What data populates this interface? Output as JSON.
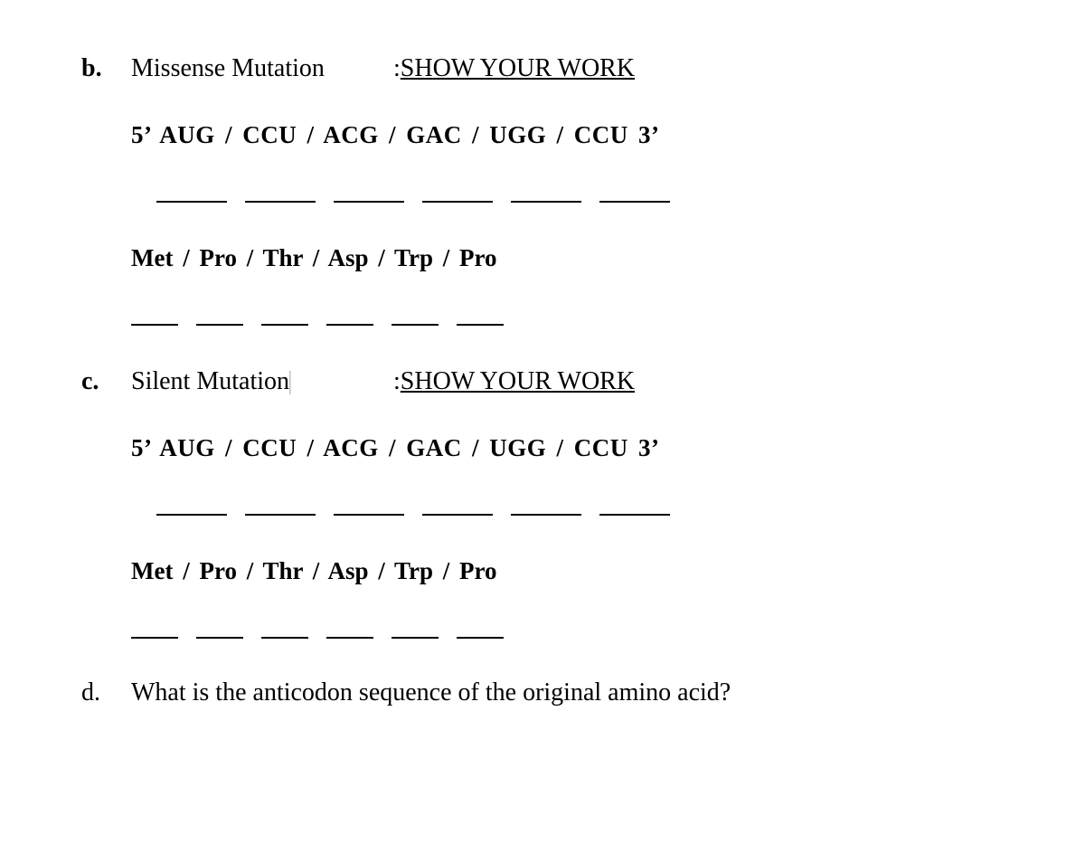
{
  "items": {
    "b": {
      "marker": "b.",
      "label": "Missense Mutation",
      "prefix": ": ",
      "show": "SHOW YOUR WORK",
      "sequence": "5’ AUG  /  CCU  /  ACG  /  GAC  /  UGG  /  CCU 3’",
      "aminos": "Met  /  Pro  /  Thr  /  Asp  /  Trp  /  Pro"
    },
    "c": {
      "marker": "c.",
      "label": "Silent Mutation",
      "prefix": ": ",
      "show": "SHOW YOUR WORK",
      "sequence": "5’ AUG  /  CCU  /  ACG  /  GAC  /  UGG  /  CCU 3’",
      "aminos": "Met  /  Pro  /  Thr  /  Asp  /  Trp  /  Pro"
    },
    "d": {
      "marker": "d.",
      "question": "What is the anticodon sequence of the original amino acid?"
    }
  },
  "cursor": "|",
  "layout": {
    "long_blanks": 6,
    "short_blanks": 6
  }
}
